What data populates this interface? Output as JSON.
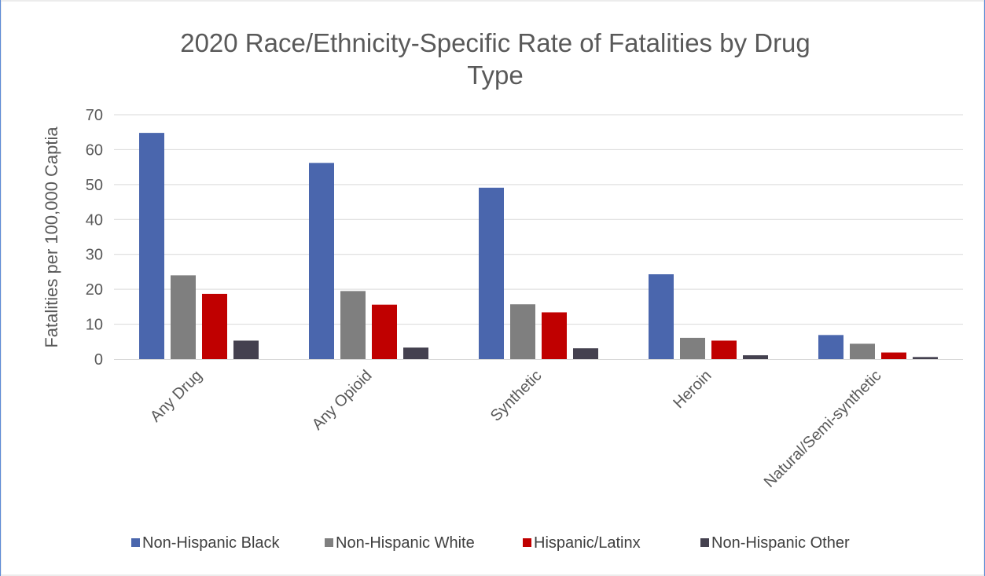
{
  "chart_data": {
    "type": "bar",
    "title_lines": [
      "2020 Race/Ethnicity-Specific Rate of Fatalities by Drug",
      "Type"
    ],
    "ylabel": "Fatalities per 100,000 Captia",
    "xlabel": "",
    "ylim": [
      0,
      70
    ],
    "yticks": [
      0,
      10,
      20,
      30,
      40,
      50,
      60,
      70
    ],
    "ytick_labels": [
      "0",
      "10",
      "20",
      "30",
      "40",
      "50",
      "60",
      "70"
    ],
    "grid": true,
    "legend_position": "bottom",
    "categories": [
      "Any Drug",
      "Any Opioid",
      "Synthetic",
      "Heroin",
      "Natural/Semi-synthetic"
    ],
    "series": [
      {
        "name": "Non-Hispanic Black",
        "color": "#4a66ad",
        "values": [
          64.8,
          56.2,
          49.1,
          24.3,
          6.9
        ]
      },
      {
        "name": "Non-Hispanic White",
        "color": "#7f7f7f",
        "values": [
          24.0,
          19.5,
          15.7,
          6.1,
          4.4
        ]
      },
      {
        "name": "Hispanic/Latinx",
        "color": "#c00000",
        "values": [
          18.7,
          15.6,
          13.4,
          5.3,
          1.9
        ]
      },
      {
        "name": "Non-Hispanic Other",
        "color": "#44414f",
        "values": [
          5.3,
          3.3,
          3.1,
          1.1,
          0.6
        ]
      }
    ]
  }
}
